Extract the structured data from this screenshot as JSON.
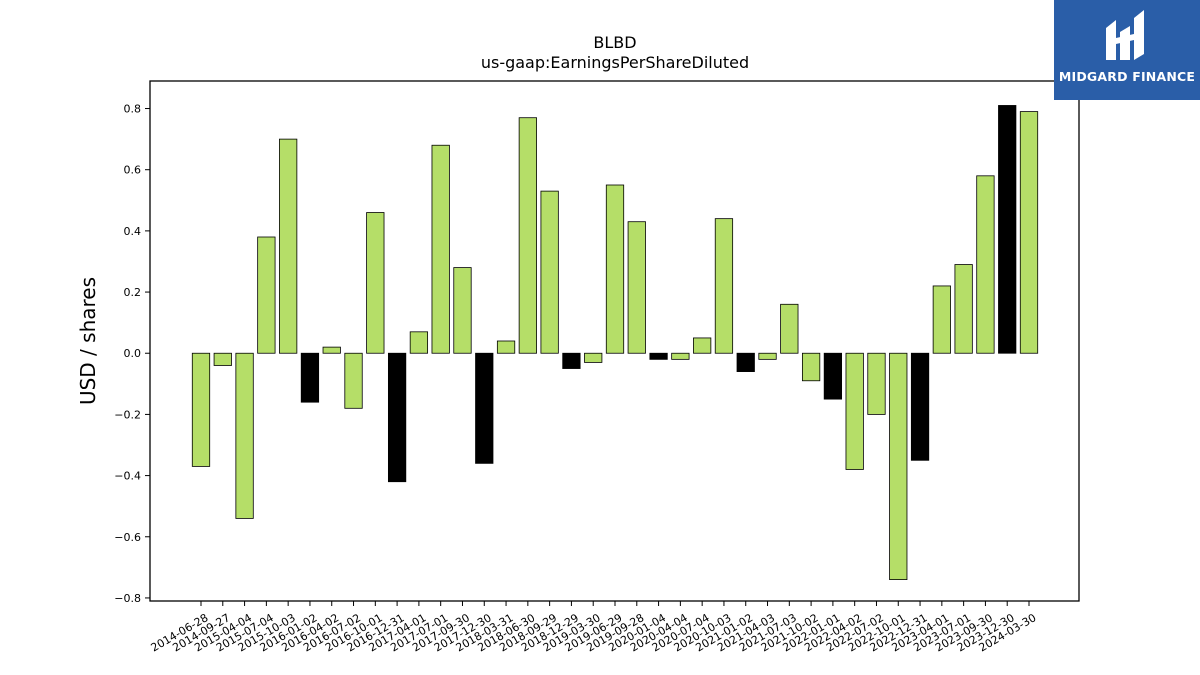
{
  "chart_data": {
    "type": "bar",
    "title": "BLBD",
    "subtitle": "us-gaap:EarningsPerShareDiluted",
    "xlabel": "",
    "ylabel": "USD / shares",
    "ylim": [
      -0.81,
      0.89
    ],
    "yticks": [
      -0.8,
      -0.6,
      -0.4,
      -0.2,
      0.0,
      0.2,
      0.4,
      0.6,
      0.8
    ],
    "ytick_labels": [
      "−0.8",
      "−0.6",
      "−0.4",
      "−0.2",
      "0.0",
      "0.2",
      "0.4",
      "0.6",
      "0.8"
    ],
    "grid": false,
    "categories": [
      "2014-06-28",
      "2014-09-27",
      "2015-04-04",
      "2015-07-04",
      "2015-10-03",
      "2016-01-02",
      "2016-04-02",
      "2016-07-02",
      "2016-10-01",
      "2016-12-31",
      "2017-04-01",
      "2017-07-01",
      "2017-09-30",
      "2017-12-30",
      "2018-03-31",
      "2018-06-30",
      "2018-09-29",
      "2018-12-29",
      "2019-03-30",
      "2019-06-29",
      "2019-09-28",
      "2020-01-04",
      "2020-04-04",
      "2020-07-04",
      "2020-10-03",
      "2021-01-02",
      "2021-04-03",
      "2021-07-03",
      "2021-10-02",
      "2022-01-01",
      "2022-04-02",
      "2022-07-02",
      "2022-10-01",
      "2022-12-31",
      "2023-04-01",
      "2023-07-01",
      "2023-09-30",
      "2023-12-30",
      "2024-03-30"
    ],
    "values": [
      -0.37,
      -0.04,
      -0.54,
      0.38,
      0.7,
      -0.16,
      0.02,
      -0.18,
      0.46,
      -0.42,
      0.07,
      0.68,
      0.28,
      -0.36,
      0.04,
      0.77,
      0.53,
      -0.05,
      -0.03,
      0.55,
      0.43,
      -0.02,
      -0.02,
      0.05,
      0.44,
      -0.06,
      -0.02,
      0.16,
      -0.09,
      -0.15,
      -0.38,
      -0.2,
      -0.74,
      -0.35,
      0.22,
      0.29,
      0.58,
      0.81,
      0.79
    ],
    "highlight": [
      false,
      false,
      false,
      false,
      false,
      true,
      false,
      false,
      false,
      true,
      false,
      false,
      false,
      true,
      false,
      false,
      false,
      true,
      false,
      false,
      false,
      true,
      false,
      false,
      false,
      true,
      false,
      false,
      false,
      true,
      false,
      false,
      false,
      true,
      false,
      false,
      false,
      true,
      false
    ],
    "bar_color": "#b5de68",
    "highlight_color": "#000000"
  },
  "logo": {
    "text": "MIDGARD FINANCE",
    "color": "#2a5ea8"
  }
}
